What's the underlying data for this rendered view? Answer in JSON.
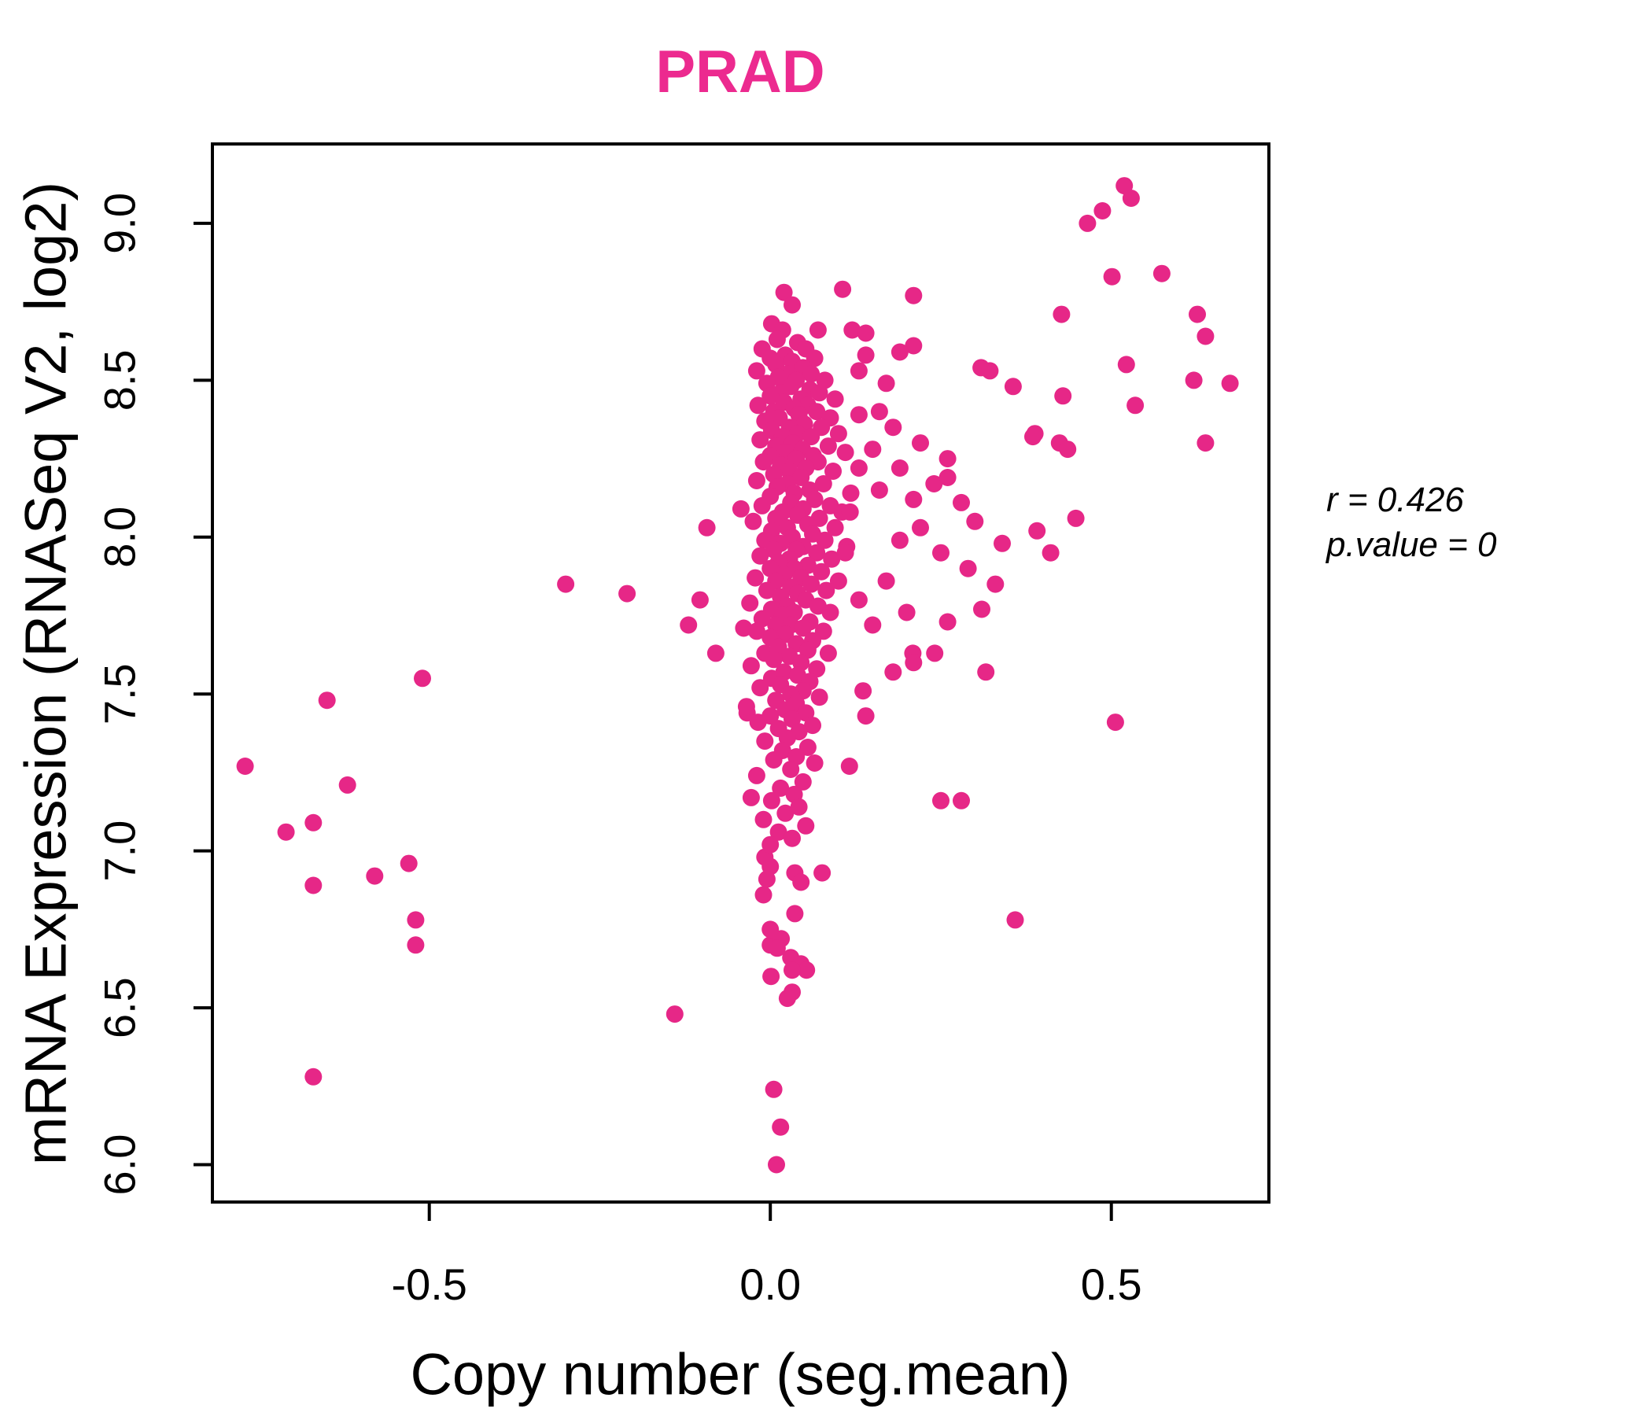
{
  "chart_data": {
    "type": "scatter",
    "title": "PRAD",
    "xlabel": "Copy number (seg.mean)",
    "ylabel": "mRNA Expression (RNASeq V2, log2)",
    "x_ticks": [
      -0.5,
      0.0,
      0.5
    ],
    "x_tick_labels": [
      "-0.5",
      "0.0",
      "0.5"
    ],
    "y_ticks": [
      6.0,
      6.5,
      7.0,
      7.5,
      8.0,
      8.5,
      9.0
    ],
    "y_tick_labels": [
      "6.0",
      "6.5",
      "7.0",
      "7.5",
      "8.0",
      "8.5",
      "9.0"
    ],
    "xlim": [
      -0.818,
      0.731
    ],
    "ylim": [
      5.881,
      9.253
    ],
    "grid": false,
    "legend": null,
    "annotation": {
      "line1": "r = 0.426",
      "line2": "p.value = 0"
    },
    "colors": {
      "point": "#E62787",
      "title": "#EC2A8F",
      "axis": "#000000"
    },
    "points": [
      [
        -0.77,
        7.27
      ],
      [
        -0.71,
        7.06
      ],
      [
        -0.67,
        7.09
      ],
      [
        -0.65,
        7.48
      ],
      [
        -0.62,
        7.21
      ],
      [
        -0.67,
        6.89
      ],
      [
        -0.58,
        6.92
      ],
      [
        -0.53,
        6.96
      ],
      [
        -0.52,
        6.78
      ],
      [
        -0.52,
        6.7
      ],
      [
        -0.67,
        6.28
      ],
      [
        -0.51,
        7.55
      ],
      [
        -0.3,
        7.85
      ],
      [
        -0.21,
        7.82
      ],
      [
        -0.14,
        6.48
      ],
      [
        -0.093,
        8.03
      ],
      [
        -0.103,
        7.8
      ],
      [
        -0.12,
        7.72
      ],
      [
        -0.08,
        7.63
      ],
      [
        -0.043,
        8.09
      ],
      [
        -0.039,
        7.71
      ],
      [
        -0.034,
        7.44
      ],
      [
        -0.028,
        7.17
      ],
      [
        0.009,
        6.0
      ],
      [
        0.015,
        6.12
      ],
      [
        0.005,
        6.24
      ],
      [
        0.032,
        6.55
      ],
      [
        0.025,
        6.53
      ],
      [
        0.001,
        6.6
      ],
      [
        0.03,
        6.66
      ],
      [
        0.045,
        6.64
      ],
      [
        0.053,
        6.62
      ],
      [
        0.032,
        6.62
      ],
      [
        0.0,
        6.7
      ],
      [
        0.016,
        6.72
      ],
      [
        0.01,
        6.69
      ],
      [
        0.0,
        6.75
      ],
      [
        0.036,
        6.8
      ],
      [
        -0.01,
        6.86
      ],
      [
        0.036,
        6.93
      ],
      [
        0.045,
        6.9
      ],
      [
        0.076,
        6.93
      ],
      [
        -0.005,
        6.91
      ],
      [
        0.0,
        6.95
      ],
      [
        -0.008,
        6.98
      ],
      [
        0.02,
        8.78
      ],
      [
        0.032,
        8.74
      ],
      [
        0.002,
        8.68
      ],
      [
        0.018,
        8.66
      ],
      [
        0.07,
        8.66
      ],
      [
        0.01,
        8.63
      ],
      [
        0.04,
        8.62
      ],
      [
        -0.012,
        8.6
      ],
      [
        0.052,
        8.6
      ],
      [
        0.022,
        8.58
      ],
      [
        0.0,
        8.57
      ],
      [
        0.065,
        8.57
      ],
      [
        0.032,
        8.56
      ],
      [
        0.008,
        8.55
      ],
      [
        0.048,
        8.54
      ],
      [
        -0.02,
        8.53
      ],
      [
        0.025,
        8.52
      ],
      [
        0.06,
        8.52
      ],
      [
        0.012,
        8.51
      ],
      [
        0.08,
        8.5
      ],
      [
        0.038,
        8.5
      ],
      [
        -0.005,
        8.49
      ],
      [
        0.03,
        8.48
      ],
      [
        0.058,
        8.47
      ],
      [
        0.015,
        8.46
      ],
      [
        0.072,
        8.46
      ],
      [
        0.0,
        8.45
      ],
      [
        0.045,
        8.44
      ],
      [
        0.095,
        8.44
      ],
      [
        0.02,
        8.43
      ],
      [
        -0.018,
        8.42
      ],
      [
        0.055,
        8.42
      ],
      [
        0.035,
        8.41
      ],
      [
        0.005,
        8.4
      ],
      [
        0.068,
        8.4
      ],
      [
        0.042,
        8.39
      ],
      [
        0.088,
        8.38
      ],
      [
        0.013,
        8.38
      ],
      [
        -0.008,
        8.37
      ],
      [
        0.05,
        8.36
      ],
      [
        0.028,
        8.35
      ],
      [
        0.075,
        8.35
      ],
      [
        0.002,
        8.34
      ],
      [
        0.04,
        8.33
      ],
      [
        0.1,
        8.33
      ],
      [
        0.018,
        8.32
      ],
      [
        0.06,
        8.32
      ],
      [
        -0.015,
        8.31
      ],
      [
        0.033,
        8.3
      ],
      [
        0.008,
        8.29
      ],
      [
        0.085,
        8.29
      ],
      [
        0.047,
        8.28
      ],
      [
        0.022,
        8.27
      ],
      [
        0.11,
        8.27
      ],
      [
        0.0,
        8.26
      ],
      [
        0.063,
        8.26
      ],
      [
        0.038,
        8.25
      ],
      [
        -0.01,
        8.24
      ],
      [
        0.07,
        8.24
      ],
      [
        0.015,
        8.23
      ],
      [
        0.052,
        8.22
      ],
      [
        0.028,
        8.21
      ],
      [
        0.092,
        8.21
      ],
      [
        0.005,
        8.2
      ],
      [
        0.045,
        8.19
      ],
      [
        -0.02,
        8.18
      ],
      [
        0.025,
        8.17
      ],
      [
        0.078,
        8.17
      ],
      [
        0.01,
        8.16
      ],
      [
        0.058,
        8.15
      ],
      [
        0.035,
        8.14
      ],
      [
        0.118,
        8.14
      ],
      [
        0.0,
        8.13
      ],
      [
        0.065,
        8.12
      ],
      [
        0.03,
        8.11
      ],
      [
        -0.012,
        8.1
      ],
      [
        0.088,
        8.1
      ],
      [
        0.048,
        8.09
      ],
      [
        0.018,
        8.08
      ],
      [
        0.105,
        8.08
      ],
      [
        0.04,
        8.07
      ],
      [
        0.008,
        8.06
      ],
      [
        0.072,
        8.06
      ],
      [
        -0.025,
        8.05
      ],
      [
        0.055,
        8.04
      ],
      [
        0.025,
        8.03
      ],
      [
        0.095,
        8.03
      ],
      [
        0.002,
        8.02
      ],
      [
        0.062,
        8.01
      ],
      [
        0.032,
        8.0
      ],
      [
        -0.008,
        7.99
      ],
      [
        0.08,
        7.99
      ],
      [
        0.015,
        7.98
      ],
      [
        0.048,
        7.97
      ],
      [
        0.112,
        7.97
      ],
      [
        0.038,
        7.96
      ],
      [
        0.005,
        7.96
      ],
      [
        0.068,
        7.95
      ],
      [
        -0.015,
        7.94
      ],
      [
        0.028,
        7.93
      ],
      [
        0.09,
        7.93
      ],
      [
        0.012,
        7.92
      ],
      [
        0.055,
        7.91
      ],
      [
        0.035,
        7.9
      ],
      [
        0.0,
        7.9
      ],
      [
        0.075,
        7.89
      ],
      [
        0.02,
        7.88
      ],
      [
        -0.022,
        7.87
      ],
      [
        0.045,
        7.87
      ],
      [
        0.008,
        7.86
      ],
      [
        0.1,
        7.86
      ],
      [
        0.06,
        7.85
      ],
      [
        0.03,
        7.84
      ],
      [
        -0.005,
        7.83
      ],
      [
        0.082,
        7.83
      ],
      [
        0.04,
        7.82
      ],
      [
        0.015,
        7.81
      ],
      [
        0.052,
        7.8
      ],
      [
        -0.03,
        7.79
      ],
      [
        0.025,
        7.78
      ],
      [
        0.07,
        7.78
      ],
      [
        0.002,
        7.77
      ],
      [
        0.035,
        7.76
      ],
      [
        0.088,
        7.76
      ],
      [
        0.018,
        7.75
      ],
      [
        -0.012,
        7.74
      ],
      [
        0.058,
        7.73
      ],
      [
        0.03,
        7.72
      ],
      [
        0.008,
        7.72
      ],
      [
        0.048,
        7.71
      ],
      [
        -0.02,
        7.7
      ],
      [
        0.078,
        7.7
      ],
      [
        0.022,
        7.69
      ],
      [
        0.0,
        7.68
      ],
      [
        0.062,
        7.67
      ],
      [
        0.038,
        7.66
      ],
      [
        0.012,
        7.65
      ],
      [
        0.055,
        7.64
      ],
      [
        -0.008,
        7.63
      ],
      [
        0.085,
        7.63
      ],
      [
        0.028,
        7.62
      ],
      [
        0.005,
        7.61
      ],
      [
        0.045,
        7.6
      ],
      [
        -0.028,
        7.59
      ],
      [
        0.068,
        7.58
      ],
      [
        0.02,
        7.57
      ],
      [
        0.04,
        7.56
      ],
      [
        0.002,
        7.55
      ],
      [
        0.058,
        7.54
      ],
      [
        0.015,
        7.53
      ],
      [
        -0.015,
        7.52
      ],
      [
        0.048,
        7.51
      ],
      [
        0.03,
        7.5
      ],
      [
        0.072,
        7.49
      ],
      [
        0.008,
        7.48
      ],
      [
        0.038,
        7.47
      ],
      [
        -0.035,
        7.46
      ],
      [
        0.022,
        7.45
      ],
      [
        0.052,
        7.44
      ],
      [
        0.0,
        7.43
      ],
      [
        0.032,
        7.42
      ],
      [
        -0.018,
        7.41
      ],
      [
        0.062,
        7.4
      ],
      [
        0.012,
        7.39
      ],
      [
        0.042,
        7.38
      ],
      [
        0.025,
        7.36
      ],
      [
        -0.008,
        7.35
      ],
      [
        0.055,
        7.33
      ],
      [
        0.018,
        7.32
      ],
      [
        0.038,
        7.3
      ],
      [
        0.005,
        7.29
      ],
      [
        0.065,
        7.28
      ],
      [
        0.03,
        7.26
      ],
      [
        -0.02,
        7.24
      ],
      [
        0.048,
        7.22
      ],
      [
        0.015,
        7.2
      ],
      [
        0.035,
        7.18
      ],
      [
        0.002,
        7.16
      ],
      [
        0.042,
        7.14
      ],
      [
        0.022,
        7.12
      ],
      [
        -0.01,
        7.1
      ],
      [
        0.052,
        7.08
      ],
      [
        0.012,
        7.06
      ],
      [
        0.032,
        7.04
      ],
      [
        0.0,
        7.02
      ],
      [
        0.106,
        8.79
      ],
      [
        0.21,
        8.77
      ],
      [
        0.12,
        8.66
      ],
      [
        0.14,
        8.65
      ],
      [
        0.21,
        8.61
      ],
      [
        0.19,
        8.59
      ],
      [
        0.14,
        8.58
      ],
      [
        0.13,
        8.53
      ],
      [
        0.17,
        8.49
      ],
      [
        0.309,
        8.54
      ],
      [
        0.322,
        8.53
      ],
      [
        0.356,
        8.48
      ],
      [
        0.16,
        8.4
      ],
      [
        0.13,
        8.39
      ],
      [
        0.18,
        8.35
      ],
      [
        0.22,
        8.3
      ],
      [
        0.15,
        8.28
      ],
      [
        0.26,
        8.25
      ],
      [
        0.13,
        8.22
      ],
      [
        0.19,
        8.22
      ],
      [
        0.24,
        8.17
      ],
      [
        0.16,
        8.15
      ],
      [
        0.21,
        8.12
      ],
      [
        0.28,
        8.11
      ],
      [
        0.26,
        8.19
      ],
      [
        0.117,
        8.08
      ],
      [
        0.22,
        8.03
      ],
      [
        0.3,
        8.05
      ],
      [
        0.19,
        7.99
      ],
      [
        0.25,
        7.95
      ],
      [
        0.34,
        7.98
      ],
      [
        0.11,
        7.95
      ],
      [
        0.17,
        7.86
      ],
      [
        0.29,
        7.9
      ],
      [
        0.33,
        7.85
      ],
      [
        0.13,
        7.8
      ],
      [
        0.2,
        7.76
      ],
      [
        0.15,
        7.72
      ],
      [
        0.26,
        7.73
      ],
      [
        0.31,
        7.77
      ],
      [
        0.209,
        7.63
      ],
      [
        0.241,
        7.63
      ],
      [
        0.21,
        7.6
      ],
      [
        0.18,
        7.57
      ],
      [
        0.385,
        8.32
      ],
      [
        0.424,
        8.3
      ],
      [
        0.436,
        8.28
      ],
      [
        0.448,
        8.06
      ],
      [
        0.391,
        8.02
      ],
      [
        0.411,
        7.95
      ],
      [
        0.316,
        7.57
      ],
      [
        0.25,
        7.16
      ],
      [
        0.28,
        7.16
      ],
      [
        0.116,
        7.27
      ],
      [
        0.136,
        7.51
      ],
      [
        0.14,
        7.43
      ],
      [
        0.519,
        9.12
      ],
      [
        0.529,
        9.08
      ],
      [
        0.487,
        9.04
      ],
      [
        0.465,
        9.0
      ],
      [
        0.501,
        8.83
      ],
      [
        0.574,
        8.84
      ],
      [
        0.427,
        8.71
      ],
      [
        0.626,
        8.71
      ],
      [
        0.638,
        8.64
      ],
      [
        0.522,
        8.55
      ],
      [
        0.621,
        8.5
      ],
      [
        0.674,
        8.49
      ],
      [
        0.429,
        8.45
      ],
      [
        0.535,
        8.42
      ],
      [
        0.388,
        8.33
      ],
      [
        0.638,
        8.3
      ],
      [
        0.359,
        6.78
      ],
      [
        0.506,
        7.41
      ]
    ]
  }
}
